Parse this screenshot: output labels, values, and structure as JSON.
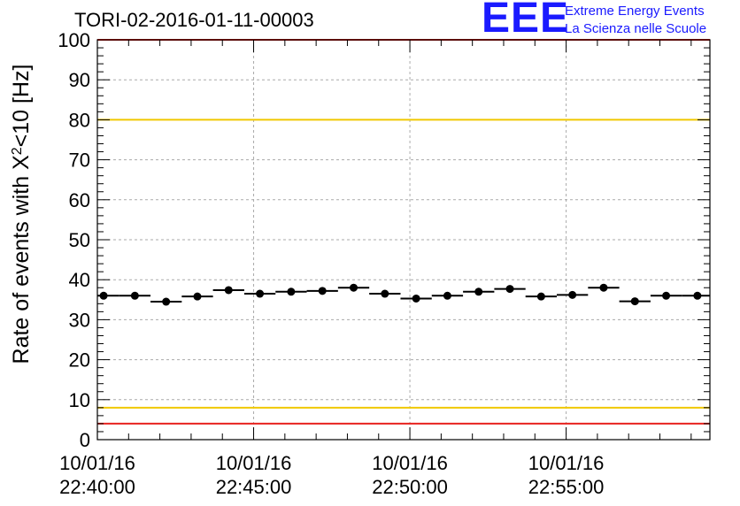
{
  "header": {
    "title": "TORI-02-2016-01-11-00003"
  },
  "logo": {
    "mark": "EEE",
    "line1": "Extreme Energy Events",
    "line2": "La Scienza nelle Scuole"
  },
  "colors": {
    "red_line": "#e8231f",
    "yellow_line": "#f0c800",
    "marker": "#000000",
    "grid": "#aaaaaa",
    "logo": "#1a1aff"
  },
  "chart_data": {
    "type": "scatter",
    "title": "TORI-02-2016-01-11-00003",
    "ylabel_prefix": "Rate of events with X",
    "ylabel_superscript": "2",
    "ylabel_suffix": "<10 [Hz]",
    "xlabel": "",
    "ylim": [
      0,
      100
    ],
    "xlim_minutes": [
      0,
      19.6
    ],
    "y_ticks": [
      "0",
      "10",
      "20",
      "30",
      "40",
      "50",
      "60",
      "70",
      "80",
      "90",
      "100"
    ],
    "x_ticks": [
      {
        "at": 0,
        "date": "10/01/16",
        "time": "22:40:00"
      },
      {
        "at": 5,
        "date": "10/01/16",
        "time": "22:45:00"
      },
      {
        "at": 10,
        "date": "10/01/16",
        "time": "22:50:00"
      },
      {
        "at": 15,
        "date": "10/01/16",
        "time": "22:55:00"
      }
    ],
    "reference_lines": [
      {
        "name": "upper-red",
        "y": 100,
        "color": "red"
      },
      {
        "name": "upper-yellow",
        "y": 80,
        "color": "yellow"
      },
      {
        "name": "lower-yellow",
        "y": 8,
        "color": "yellow"
      },
      {
        "name": "lower-red",
        "y": 4,
        "color": "red"
      }
    ],
    "bin_width_minutes": 1,
    "points": {
      "x": [
        0.2,
        1.2,
        2.2,
        3.2,
        4.2,
        5.2,
        6.2,
        7.2,
        8.2,
        9.2,
        10.2,
        11.2,
        12.2,
        13.2,
        14.2,
        15.2,
        16.2,
        17.2,
        18.2,
        19.2
      ],
      "y": [
        36.0,
        36.0,
        34.5,
        35.8,
        37.4,
        36.5,
        37.0,
        37.2,
        38.0,
        36.5,
        35.3,
        36.0,
        37.0,
        37.7,
        35.8,
        36.2,
        38.0,
        34.6,
        36.0,
        36.0
      ]
    }
  }
}
